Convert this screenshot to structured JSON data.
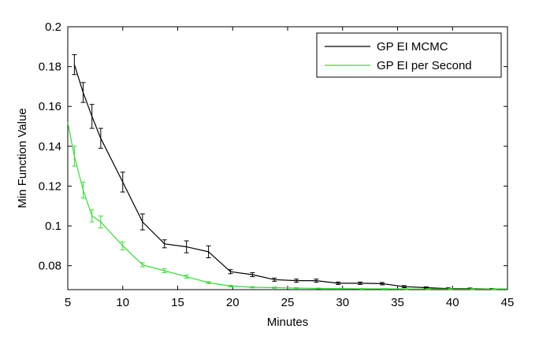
{
  "chart_data": {
    "type": "line",
    "title": "",
    "xlabel": "Minutes",
    "ylabel": "Min Function Value",
    "xlim": [
      5,
      45
    ],
    "ylim": [
      0.068,
      0.2
    ],
    "xticks": [
      5,
      10,
      15,
      20,
      25,
      30,
      35,
      40,
      45
    ],
    "xtick_labels": [
      "5",
      "10",
      "15",
      "20",
      "25",
      "30",
      "35",
      "40",
      "45"
    ],
    "yticks": [
      0.08,
      0.1,
      0.12,
      0.14,
      0.16,
      0.18,
      0.2
    ],
    "ytick_labels": [
      "0.08",
      "0.1",
      "0.12",
      "0.14",
      "0.16",
      "0.18",
      "0.2"
    ],
    "grid": false,
    "legend_position": "top-right",
    "series": [
      {
        "name": "GP EI MCMC",
        "color": "#000000",
        "x": [
          5.6,
          6.4,
          7.2,
          8.0,
          10.0,
          11.8,
          13.8,
          15.8,
          17.8,
          19.8,
          21.8,
          23.8,
          25.8,
          27.6,
          29.6,
          31.6,
          33.6,
          35.6,
          37.6,
          39.6,
          41.6,
          43.6,
          45.0
        ],
        "y": [
          0.181,
          0.167,
          0.155,
          0.144,
          0.122,
          0.102,
          0.091,
          0.0895,
          0.087,
          0.077,
          0.0755,
          0.073,
          0.0725,
          0.0725,
          0.0712,
          0.0712,
          0.071,
          0.0695,
          0.069,
          0.0685,
          0.0685,
          0.0683,
          0.0683
        ],
        "err": [
          0.005,
          0.005,
          0.006,
          0.005,
          0.005,
          0.004,
          0.002,
          0.003,
          0.003,
          0.001,
          0.001,
          0.0008,
          0.0008,
          0.0008,
          0.0006,
          0.0006,
          0.0006,
          0.0005,
          0.0004,
          0.0004,
          0.0003,
          0.0003,
          0
        ]
      },
      {
        "name": "GP EI per Second",
        "color": "#33dd33",
        "x": [
          5.0,
          5.6,
          6.4,
          7.2,
          8.0,
          10.0,
          11.8,
          13.8,
          15.8,
          17.8,
          19.8,
          21.8,
          23.8,
          25.8,
          27.8,
          29.8,
          31.8,
          33.8,
          35.8,
          37.8,
          39.8,
          41.8,
          43.8,
          45.0
        ],
        "y": [
          0.152,
          0.135,
          0.118,
          0.105,
          0.102,
          0.09,
          0.0805,
          0.0775,
          0.0745,
          0.0715,
          0.0698,
          0.0692,
          0.069,
          0.0688,
          0.0686,
          0.0685,
          0.0684,
          0.0684,
          0.0683,
          0.0683,
          0.0683,
          0.0683,
          0.0683,
          0.0683
        ],
        "err": [
          0,
          0.005,
          0.004,
          0.003,
          0.003,
          0.002,
          0.001,
          0.001,
          0.0008,
          0.0005,
          0.0004,
          0.0003,
          0.0003,
          0.0002,
          0.0002,
          0.0002,
          0.0002,
          0.0002,
          0.0002,
          0.0002,
          0.0002,
          0.0002,
          0.0002,
          0
        ]
      }
    ]
  }
}
